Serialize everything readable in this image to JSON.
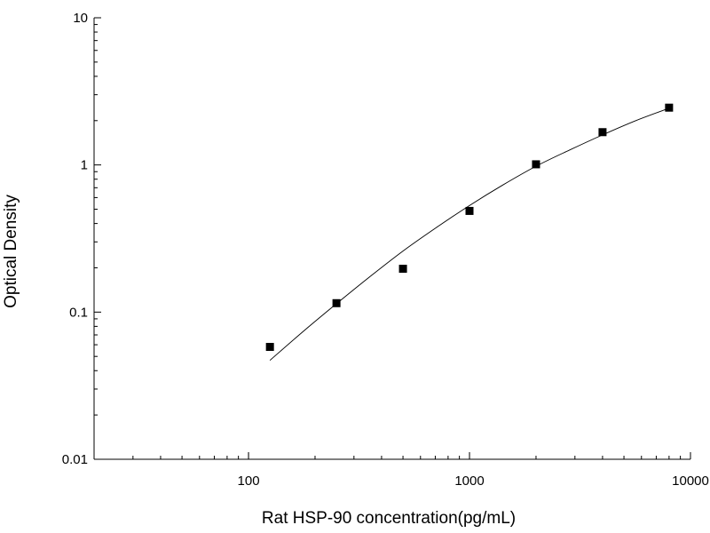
{
  "chart_data": {
    "type": "scatter",
    "xlabel": "Rat HSP-90 concentration(pg/mL)",
    "ylabel": "Optical Density",
    "x_scale": "log",
    "y_scale": "log",
    "xlim": [
      20,
      10000
    ],
    "ylim": [
      0.01,
      10
    ],
    "x_ticks": [
      {
        "value": 100,
        "label": "100"
      },
      {
        "value": 1000,
        "label": "1000"
      },
      {
        "value": 10000,
        "label": "10000"
      }
    ],
    "y_ticks": [
      {
        "value": 0.01,
        "label": "0.01"
      },
      {
        "value": 0.1,
        "label": "0.1"
      },
      {
        "value": 1,
        "label": "1"
      },
      {
        "value": 10,
        "label": "10"
      }
    ],
    "points": [
      {
        "x": 125,
        "y": 0.058
      },
      {
        "x": 250,
        "y": 0.115
      },
      {
        "x": 500,
        "y": 0.197
      },
      {
        "x": 1000,
        "y": 0.487
      },
      {
        "x": 2000,
        "y": 1.01
      },
      {
        "x": 4000,
        "y": 1.67
      },
      {
        "x": 8000,
        "y": 2.45
      }
    ],
    "fit_curve": [
      {
        "x": 125,
        "y": 0.047
      },
      {
        "x": 177,
        "y": 0.074
      },
      {
        "x": 250,
        "y": 0.114
      },
      {
        "x": 354,
        "y": 0.174
      },
      {
        "x": 500,
        "y": 0.26
      },
      {
        "x": 707,
        "y": 0.375
      },
      {
        "x": 1000,
        "y": 0.53
      },
      {
        "x": 1414,
        "y": 0.73
      },
      {
        "x": 2000,
        "y": 0.98
      },
      {
        "x": 2828,
        "y": 1.26
      },
      {
        "x": 4000,
        "y": 1.6
      },
      {
        "x": 5657,
        "y": 2.0
      },
      {
        "x": 8000,
        "y": 2.43
      }
    ],
    "grid": false,
    "legend": "none",
    "marker_color": "#000000",
    "line_color": "#000000"
  }
}
